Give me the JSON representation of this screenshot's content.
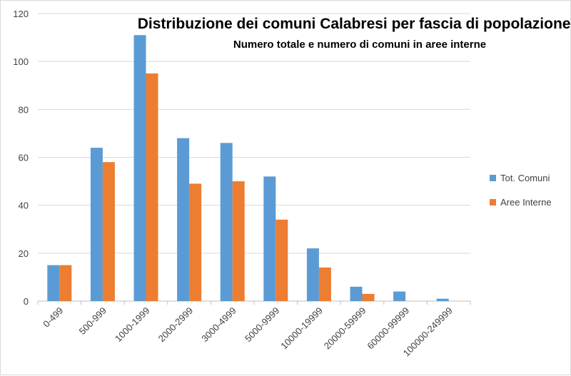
{
  "chart_data": {
    "type": "bar",
    "title": "Distribuzione dei comuni Calabresi per fascia di popolazione.",
    "subtitle": "Numero totale e numero di comuni in aree interne",
    "categories": [
      "0-499",
      "500-999",
      "1000-1999",
      "2000-2999",
      "3000-4999",
      "5000-9999",
      "10000-19999",
      "20000-59999",
      "60000-99999",
      "100000-249999"
    ],
    "series": [
      {
        "name": "Tot. Comuni",
        "color": "#5b9bd5",
        "values": [
          15,
          64,
          111,
          68,
          66,
          52,
          22,
          6,
          4,
          1
        ]
      },
      {
        "name": "Aree Interne",
        "color": "#ed7d31",
        "values": [
          15,
          58,
          95,
          49,
          50,
          34,
          14,
          3,
          0,
          0
        ]
      }
    ],
    "xlabel": "",
    "ylabel": "",
    "ylim": [
      0,
      120
    ],
    "yticks": [
      0,
      20,
      40,
      60,
      80,
      100,
      120
    ],
    "grid": true,
    "legend": "right"
  }
}
